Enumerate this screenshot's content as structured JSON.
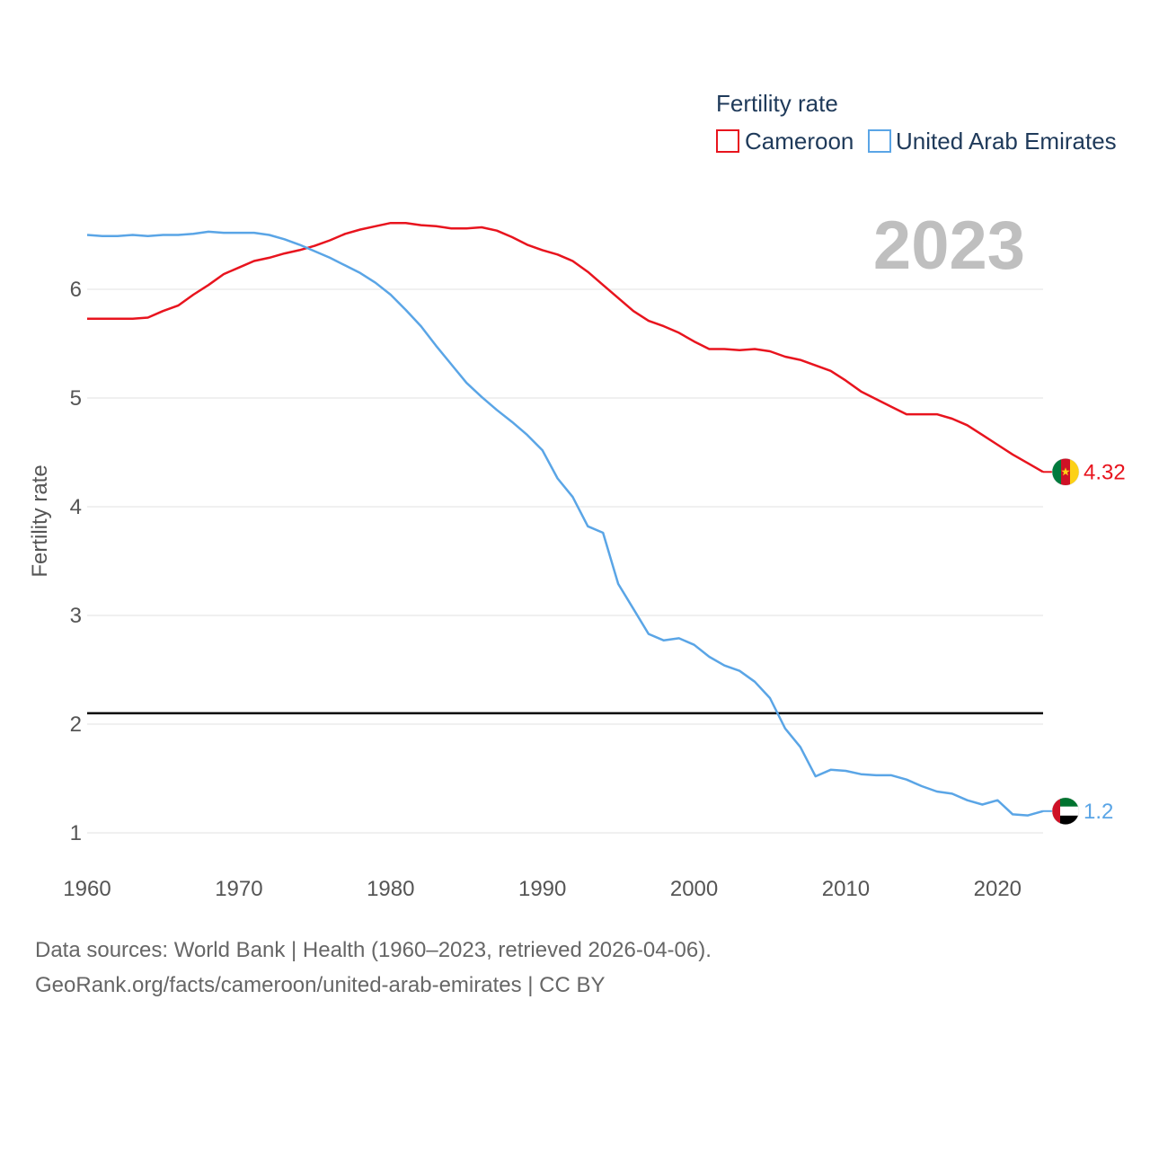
{
  "chart_data": {
    "type": "line",
    "year_label": "2023",
    "legend_title": "Fertility rate",
    "ylabel": "Fertility rate",
    "xlabel": "",
    "xlim": [
      1960,
      2023
    ],
    "ylim": [
      0.8,
      6.95
    ],
    "yticks": [
      1,
      2,
      3,
      4,
      5,
      6
    ],
    "xticks": [
      1960,
      1970,
      1980,
      1990,
      2000,
      2010,
      2020
    ],
    "reference_line": 2.1,
    "x": [
      1960,
      1961,
      1962,
      1963,
      1964,
      1965,
      1966,
      1967,
      1968,
      1969,
      1970,
      1971,
      1972,
      1973,
      1974,
      1975,
      1976,
      1977,
      1978,
      1979,
      1980,
      1981,
      1982,
      1983,
      1984,
      1985,
      1986,
      1987,
      1988,
      1989,
      1990,
      1991,
      1992,
      1993,
      1994,
      1995,
      1996,
      1997,
      1998,
      1999,
      2000,
      2001,
      2002,
      2003,
      2004,
      2005,
      2006,
      2007,
      2008,
      2009,
      2010,
      2011,
      2012,
      2013,
      2014,
      2015,
      2016,
      2017,
      2018,
      2019,
      2020,
      2021,
      2022,
      2023
    ],
    "series": [
      {
        "name": "Cameroon",
        "color": "#e8141e",
        "end_label": "4.32",
        "flag": "cameroon-flag-icon",
        "values": [
          5.73,
          5.73,
          5.73,
          5.73,
          5.74,
          5.8,
          5.85,
          5.95,
          6.04,
          6.14,
          6.2,
          6.26,
          6.29,
          6.33,
          6.36,
          6.4,
          6.45,
          6.51,
          6.55,
          6.58,
          6.61,
          6.61,
          6.59,
          6.58,
          6.56,
          6.56,
          6.57,
          6.54,
          6.48,
          6.41,
          6.36,
          6.32,
          6.26,
          6.16,
          6.04,
          5.92,
          5.8,
          5.71,
          5.66,
          5.6,
          5.52,
          5.45,
          5.45,
          5.44,
          5.45,
          5.43,
          5.38,
          5.35,
          5.3,
          5.25,
          5.16,
          5.06,
          4.99,
          4.92,
          4.85,
          4.85,
          4.85,
          4.81,
          4.75,
          4.66,
          4.57,
          4.48,
          4.4,
          4.32
        ]
      },
      {
        "name": "United Arab Emirates",
        "color": "#5aa5e6",
        "end_label": "1.2",
        "flag": "uae-flag-icon",
        "values": [
          6.5,
          6.49,
          6.49,
          6.5,
          6.49,
          6.5,
          6.5,
          6.51,
          6.53,
          6.52,
          6.52,
          6.52,
          6.5,
          6.46,
          6.41,
          6.35,
          6.29,
          6.22,
          6.15,
          6.06,
          5.95,
          5.81,
          5.66,
          5.48,
          5.31,
          5.14,
          5.01,
          4.89,
          4.78,
          4.66,
          4.52,
          4.26,
          4.09,
          3.82,
          3.76,
          3.29,
          3.06,
          2.83,
          2.77,
          2.79,
          2.73,
          2.62,
          2.54,
          2.49,
          2.39,
          2.24,
          1.96,
          1.79,
          1.52,
          1.58,
          1.57,
          1.54,
          1.53,
          1.53,
          1.49,
          1.43,
          1.38,
          1.36,
          1.3,
          1.26,
          1.3,
          1.17,
          1.16,
          1.2
        ]
      }
    ]
  },
  "footer": {
    "sources": "Data sources: World Bank | Health (1960–2023, retrieved 2026-04-06).",
    "credit": "GeoRank.org/facts/cameroon/united-arab-emirates | CC BY"
  },
  "colors": {
    "grid": "#e6e6e6",
    "reference": "#000000",
    "axis_text": "#555555",
    "legend_text": "#1f3a5a",
    "year_text": "#bfbfbf"
  }
}
